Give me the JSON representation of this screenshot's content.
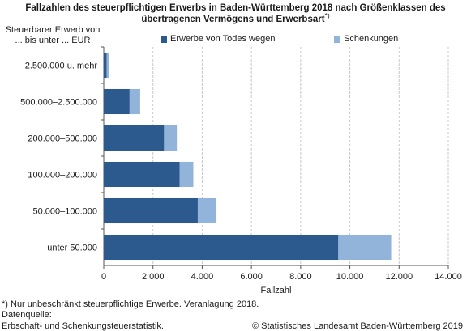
{
  "chart_data": {
    "type": "bar",
    "orientation": "horizontal",
    "stacked": true,
    "title": "Fallzahlen des steuerpflichtigen Erwerbs in Baden-Württemberg 2018 nach Größenklassen des übertragenen Vermögens und Erwerbsart",
    "title_suffix": "*)",
    "category_axis_title": "Steuerbarer Erwerb von ... bis unter ... EUR",
    "xlabel": "Fallzahl",
    "xlim": [
      0,
      14000
    ],
    "xticks": [
      0,
      2000,
      4000,
      6000,
      8000,
      10000,
      12000,
      14000
    ],
    "xtick_labels": [
      "0",
      "2.000",
      "4.000",
      "6.000",
      "8.000",
      "10.000",
      "12.000",
      "14.000"
    ],
    "grid": "vertical dashed",
    "legend_position": "top",
    "categories": [
      "2.500.000 u. mehr",
      "500.000–2.500.000",
      "200.000–500.000",
      "100.000–200.000",
      "50.000–100.000",
      "unter 50.000"
    ],
    "series": [
      {
        "name": "Erwerbe von Todes wegen",
        "color": "#2d5a8e",
        "values": [
          120,
          1050,
          2450,
          3080,
          3820,
          9530
        ]
      },
      {
        "name": "Schenkungen",
        "color": "#93b4da",
        "values": [
          90,
          430,
          520,
          560,
          760,
          2150
        ]
      }
    ]
  },
  "footnote": "*) Nur unbeschränkt steuerpflichtige Erwerbe. Veranlagung 2018.",
  "source_label": "Datenquelle:",
  "source_text": "Erbschaft- und Schenkungsteuerstatistik.",
  "copyright": "© Statistisches Landesamt Baden-Württemberg 2019"
}
